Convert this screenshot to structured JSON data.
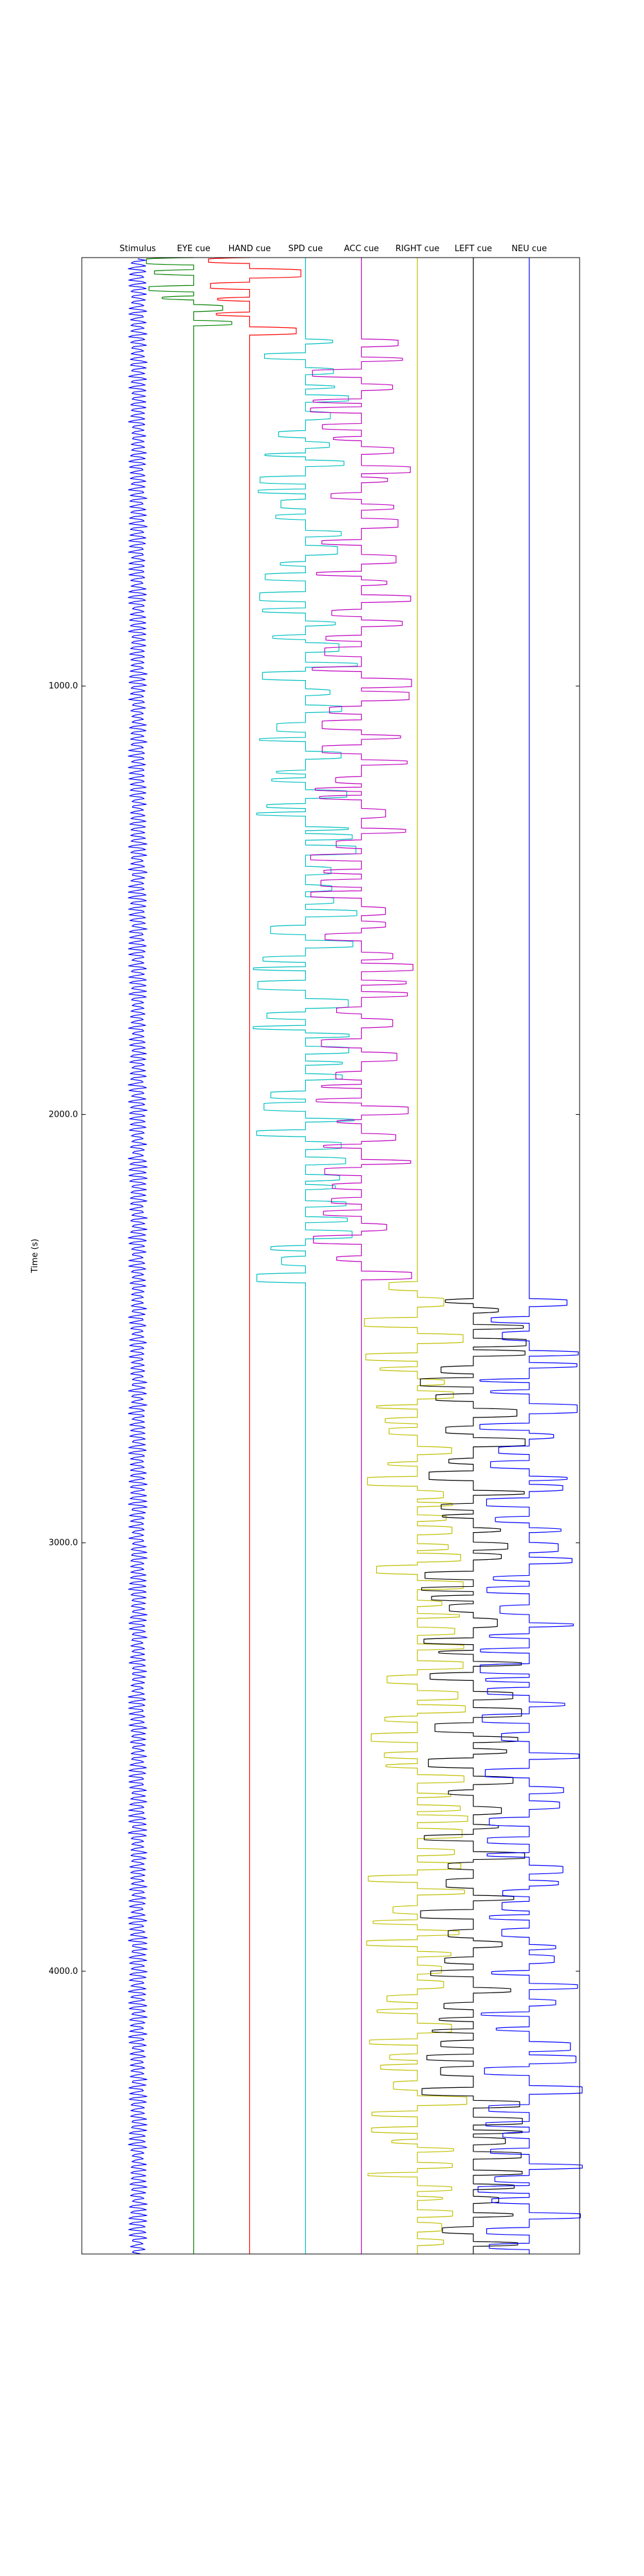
{
  "chart_data": {
    "type": "line",
    "title": "",
    "xlabel": "",
    "ylabel": "Time (s)",
    "ylim": [
      0,
      4660
    ],
    "y_inverted": true,
    "y_ticks": [
      1000,
      2000,
      3000,
      4000
    ],
    "y_tick_labels": [
      "1000.0",
      "2000.0",
      "3000.0",
      "4000.0"
    ],
    "grid": false,
    "legend": "none",
    "columns": [
      "Stimulus",
      "EYE cue",
      "HAND cue",
      "SPD cue",
      "ACC cue",
      "RIGHT cue",
      "LEFT cue",
      "NEU cue"
    ],
    "series": [
      {
        "name": "Stimulus",
        "color": "#0000ff",
        "kind": "continuous",
        "active": [
          [
            0,
            4660
          ]
        ]
      },
      {
        "name": "EYE cue",
        "color": "#008000",
        "kind": "pulses",
        "active": [
          [
            0,
            170
          ]
        ]
      },
      {
        "name": "HAND cue",
        "color": "#ff0000",
        "kind": "pulses",
        "active": [
          [
            0,
            180
          ]
        ]
      },
      {
        "name": "SPD cue",
        "color": "#00bfbf",
        "kind": "pulses",
        "active": [
          [
            190,
            2380
          ]
        ]
      },
      {
        "name": "ACC cue",
        "color": "#bf00bf",
        "kind": "pulses",
        "active": [
          [
            190,
            2380
          ]
        ]
      },
      {
        "name": "RIGHT cue",
        "color": "#bfbf00",
        "kind": "pulses",
        "active": [
          [
            2390,
            4660
          ]
        ]
      },
      {
        "name": "LEFT cue",
        "color": "#000000",
        "kind": "pulses",
        "active": [
          [
            2430,
            4660
          ]
        ]
      },
      {
        "name": "NEU cue",
        "color": "#0000ff",
        "kind": "pulses",
        "active": [
          [
            2430,
            4660
          ]
        ]
      }
    ]
  },
  "labels": {
    "ylabel": "Time (s)"
  }
}
